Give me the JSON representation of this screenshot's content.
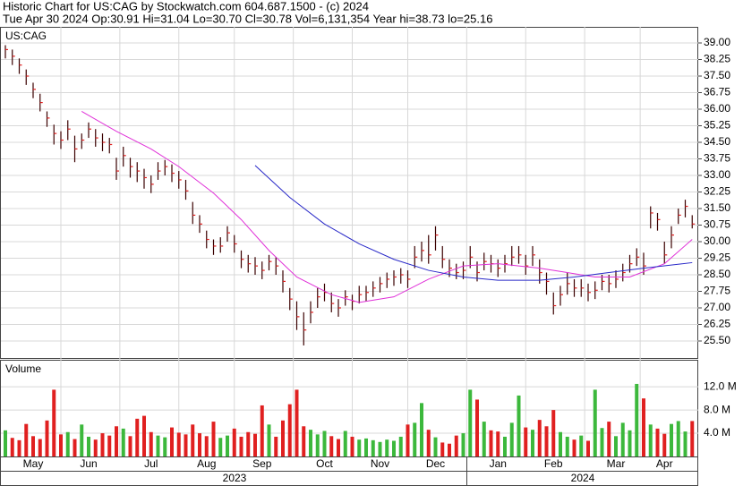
{
  "chart_data": {
    "type": "ohlc",
    "title": "Historic Chart for US:CAG by Stockwatch.com 604.687.1500 - (c) 2024",
    "subtitle": "Tue Apr 30 2024  Op:30.91  Hi=31.04  Lo=30.70  Cl=30.78  Vol=6,131,354  Year hi=38.73  lo=25.16",
    "symbol": "US:CAG",
    "volume_label": "Volume",
    "bar_color": "#3a0000",
    "up_color": "#3cb83c",
    "down_color": "#e02020",
    "grid": true,
    "high": [
      38.9,
      38.7,
      38.3,
      37.8,
      37.2,
      36.7,
      35.9,
      35.3,
      35.0,
      35.5,
      34.8,
      34.9,
      35.4,
      35.1,
      34.9,
      34.7,
      33.8,
      34.3,
      33.8,
      33.6,
      33.3,
      33.0,
      33.6,
      33.7,
      33.5,
      33.2,
      32.8,
      31.8,
      31.2,
      30.5,
      30.1,
      30.2,
      30.7,
      30.3,
      29.6,
      29.4,
      29.3,
      29.1,
      29.4,
      29.3,
      28.7,
      27.9,
      27.3,
      26.8,
      27.3,
      27.9,
      28.1,
      27.7,
      27.4,
      27.8,
      27.6,
      28.0,
      28.0,
      28.2,
      28.4,
      28.6,
      28.7,
      28.8,
      28.7,
      29.8,
      30.0,
      30.3,
      30.7,
      29.8,
      29.2,
      29.0,
      29.1,
      29.8,
      29.1,
      29.5,
      29.4,
      29.2,
      29.4,
      29.8,
      29.8,
      29.4,
      29.8,
      29.2,
      28.6,
      27.7,
      28.0,
      28.6,
      28.3,
      28.3,
      28.1,
      28.2,
      28.5,
      28.5,
      28.7,
      29.0,
      29.4,
      29.7,
      29.5,
      31.6,
      31.3,
      30.0,
      30.7,
      31.5,
      31.9,
      31.2
    ],
    "low": [
      38.3,
      38.0,
      37.6,
      37.1,
      36.5,
      35.9,
      35.2,
      34.4,
      34.2,
      34.6,
      33.6,
      34.2,
      34.7,
      34.3,
      34.1,
      34.0,
      32.8,
      33.4,
      32.9,
      32.7,
      32.4,
      32.2,
      32.8,
      33.0,
      32.7,
      32.4,
      31.9,
      30.8,
      30.4,
      29.7,
      29.4,
      29.5,
      30.0,
      29.5,
      28.8,
      28.6,
      28.5,
      28.3,
      28.7,
      28.5,
      27.7,
      26.9,
      26.0,
      25.3,
      26.3,
      27.0,
      27.3,
      26.8,
      26.6,
      27.1,
      26.9,
      27.2,
      27.3,
      27.5,
      27.7,
      27.9,
      28.0,
      28.1,
      27.9,
      28.8,
      29.1,
      29.0,
      29.6,
      28.8,
      28.4,
      28.3,
      28.3,
      28.8,
      28.2,
      28.7,
      28.6,
      28.4,
      28.6,
      28.9,
      29.0,
      28.5,
      28.9,
      28.1,
      27.6,
      26.7,
      27.1,
      27.6,
      27.5,
      27.5,
      27.3,
      27.4,
      27.8,
      27.7,
      27.9,
      28.2,
      28.6,
      28.9,
      28.5,
      30.6,
      30.5,
      29.0,
      29.7,
      30.8,
      31.1,
      30.6
    ],
    "close": [
      38.7,
      38.4,
      38.0,
      37.5,
      36.9,
      36.3,
      35.6,
      34.9,
      34.6,
      35.1,
      34.2,
      34.6,
      35.1,
      34.7,
      34.5,
      34.4,
      33.2,
      33.9,
      33.4,
      33.2,
      32.9,
      32.6,
      33.2,
      33.4,
      33.1,
      32.8,
      32.3,
      31.2,
      30.8,
      30.1,
      29.8,
      29.8,
      30.4,
      29.9,
      29.2,
      29.0,
      28.9,
      28.7,
      29.1,
      28.9,
      28.2,
      27.4,
      26.6,
      26.0,
      26.8,
      27.5,
      27.7,
      27.2,
      27.0,
      27.5,
      27.3,
      27.6,
      27.7,
      27.9,
      28.1,
      28.3,
      28.4,
      28.5,
      28.3,
      29.3,
      29.6,
      29.4,
      30.3,
      29.2,
      28.8,
      28.6,
      28.7,
      29.3,
      28.6,
      29.1,
      29.0,
      28.8,
      29.0,
      29.3,
      29.4,
      28.9,
      29.4,
      28.6,
      28.2,
      27.1,
      27.6,
      28.1,
      27.9,
      27.9,
      27.7,
      27.8,
      28.2,
      28.1,
      28.3,
      28.6,
      29.0,
      29.3,
      28.9,
      31.3,
      31.0,
      29.4,
      30.3,
      31.2,
      31.6,
      30.8
    ],
    "volume": [
      4.5,
      3.2,
      2.8,
      5.6,
      3.5,
      3.0,
      6.2,
      11.5,
      3.8,
      4.2,
      3.0,
      5.5,
      3.4,
      2.9,
      4.0,
      3.6,
      5.2,
      4.8,
      3.5,
      6.5,
      7.0,
      4.2,
      3.6,
      3.3,
      5.0,
      4.1,
      3.8,
      5.5,
      4.0,
      3.5,
      6.0,
      3.2,
      3.6,
      4.8,
      3.4,
      4.2,
      3.9,
      8.8,
      5.5,
      3.4,
      6.2,
      9.0,
      11.5,
      5.2,
      4.6,
      3.8,
      4.4,
      3.5,
      3.0,
      4.4,
      3.4,
      2.9,
      3.1,
      2.8,
      2.5,
      2.9,
      2.7,
      3.4,
      5.5,
      5.8,
      9.2,
      4.6,
      3.3,
      2.4,
      2.2,
      3.6,
      4.0,
      11.5,
      9.8,
      6.0,
      4.5,
      4.3,
      3.4,
      5.8,
      10.5,
      5.0,
      4.6,
      6.3,
      5.2,
      8.0,
      4.2,
      3.4,
      2.9,
      3.6,
      2.7,
      11.5,
      4.9,
      6.0,
      3.5,
      5.8,
      4.5,
      12.5,
      10.0,
      5.5,
      4.8,
      3.9,
      5.6,
      6.1,
      4.3,
      6.1
    ],
    "moving_averages": [
      {
        "color": "#e030d8",
        "x": [
          11,
          16,
          21,
          25,
          30,
          34,
          38,
          42,
          47,
          51,
          56,
          61,
          66,
          71,
          77,
          81,
          85,
          90,
          95,
          99
        ],
        "values": [
          35.9,
          35.0,
          34.2,
          33.4,
          32.2,
          31.0,
          29.6,
          28.4,
          27.6,
          27.25,
          27.5,
          28.3,
          28.9,
          29.0,
          28.8,
          28.6,
          28.4,
          28.4,
          29.0,
          30.1
        ]
      },
      {
        "color": "#2828c8",
        "x": [
          36,
          41,
          46,
          51,
          56,
          61,
          66,
          71,
          77,
          82,
          87,
          92,
          99
        ],
        "values": [
          33.45,
          32.0,
          30.8,
          29.9,
          29.2,
          28.7,
          28.4,
          28.25,
          28.25,
          28.4,
          28.6,
          28.8,
          29.05
        ]
      }
    ],
    "ylim": [
      24.73,
      39.73
    ],
    "yticks": [
      {
        "value": 39,
        "label": "39.00"
      },
      {
        "value": 38.25,
        "label": "38.25"
      },
      {
        "value": 37.5,
        "label": "37.50"
      },
      {
        "value": 36.75,
        "label": "36.75"
      },
      {
        "value": 36,
        "label": "36.00"
      },
      {
        "value": 35.25,
        "label": "35.25"
      },
      {
        "value": 34.5,
        "label": "34.50"
      },
      {
        "value": 33.75,
        "label": "33.75"
      },
      {
        "value": 33,
        "label": "33.00"
      },
      {
        "value": 32.25,
        "label": "32.25"
      },
      {
        "value": 31.5,
        "label": "31.50"
      },
      {
        "value": 30.75,
        "label": "30.75"
      },
      {
        "value": 30,
        "label": "30.00"
      },
      {
        "value": 29.25,
        "label": "29.25"
      },
      {
        "value": 28.5,
        "label": "28.50"
      },
      {
        "value": 27.75,
        "label": "27.75"
      },
      {
        "value": 27,
        "label": "27.00"
      },
      {
        "value": 26.25,
        "label": "26.25"
      },
      {
        "value": 25.5,
        "label": "25.50"
      }
    ],
    "volume_ylim": [
      0,
      16.5
    ],
    "volume_yticks": [
      {
        "value": 12,
        "label": "12.0 M"
      },
      {
        "value": 8,
        "label": "8.0 M"
      },
      {
        "value": 4,
        "label": "4.0 M"
      }
    ],
    "xticks": [
      {
        "value": 4,
        "label": "May"
      },
      {
        "value": 12,
        "label": "Jun"
      },
      {
        "value": 21,
        "label": "Jul"
      },
      {
        "value": 29,
        "label": "Aug"
      },
      {
        "value": 37,
        "label": "Sep"
      },
      {
        "value": 46,
        "label": "Oct"
      },
      {
        "value": 54,
        "label": "Nov"
      },
      {
        "value": 62,
        "label": "Dec"
      },
      {
        "value": 71,
        "label": "Jan"
      },
      {
        "value": 79,
        "label": "Feb"
      },
      {
        "value": 88,
        "label": "Mar"
      },
      {
        "value": 95,
        "label": "Apr"
      }
    ],
    "years": [
      "2023",
      "2024"
    ]
  }
}
